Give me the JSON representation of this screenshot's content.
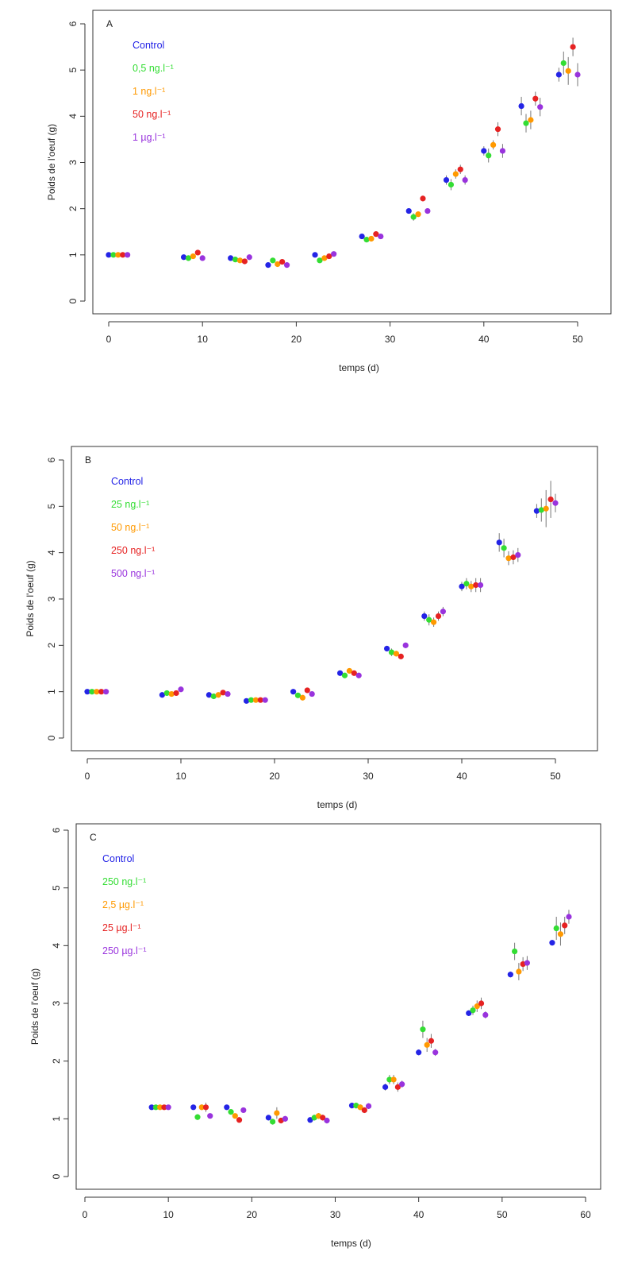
{
  "chart_data": [
    {
      "type": "scatter",
      "panel_label": "A",
      "xlabel": "temps (d)",
      "ylabel": "Poids de l'oeuf (g)",
      "xlim": [
        0,
        50
      ],
      "ylim": [
        0,
        6
      ],
      "x_ticks": [
        "0",
        "10",
        "20",
        "30",
        "40",
        "50"
      ],
      "y_ticks": [
        "0",
        "1",
        "2",
        "3",
        "4",
        "5",
        "6"
      ],
      "legend_position": "top-left",
      "series": [
        {
          "name": "Control",
          "color": "#2424e6",
          "x": [
            0,
            8,
            13,
            17,
            22,
            27,
            32,
            36,
            40,
            44,
            48
          ],
          "y": [
            1.0,
            0.95,
            0.93,
            0.78,
            1.0,
            1.4,
            1.95,
            2.62,
            3.25,
            4.22,
            4.9
          ],
          "err": [
            0,
            0.02,
            0.02,
            0.03,
            0.04,
            0.05,
            0.06,
            0.1,
            0.1,
            0.2,
            0.15
          ]
        },
        {
          "name": "0,5 ng.l⁻¹",
          "color": "#33dd33",
          "x": [
            0.5,
            8.5,
            13.5,
            17.5,
            22.5,
            27.5,
            32.5,
            36.5,
            40.5,
            44.5,
            48.5
          ],
          "y": [
            1.0,
            0.93,
            0.9,
            0.88,
            0.88,
            1.33,
            1.82,
            2.52,
            3.15,
            3.85,
            5.15
          ],
          "err": [
            0,
            0.02,
            0.02,
            0.03,
            0.04,
            0.05,
            0.08,
            0.12,
            0.15,
            0.2,
            0.25
          ]
        },
        {
          "name": "1 ng.l⁻¹",
          "color": "#ff9900",
          "x": [
            1,
            9,
            14,
            18,
            23,
            28,
            33,
            37,
            41,
            45,
            49
          ],
          "y": [
            1.0,
            0.97,
            0.88,
            0.8,
            0.93,
            1.35,
            1.88,
            2.75,
            3.38,
            3.92,
            4.98
          ],
          "err": [
            0,
            0.02,
            0.02,
            0.03,
            0.04,
            0.05,
            0.06,
            0.1,
            0.1,
            0.2,
            0.3
          ]
        },
        {
          "name": "50 ng.l⁻¹",
          "color": "#e62222",
          "x": [
            1.5,
            9.5,
            14.5,
            18.5,
            23.5,
            28.5,
            33.5,
            37.5,
            41.5,
            45.5,
            49.5
          ],
          "y": [
            1.0,
            1.05,
            0.86,
            0.85,
            0.97,
            1.45,
            2.22,
            2.85,
            3.72,
            4.38,
            5.5
          ],
          "err": [
            0,
            0.03,
            0.02,
            0.03,
            0.04,
            0.05,
            0.06,
            0.1,
            0.15,
            0.15,
            0.2
          ]
        },
        {
          "name": "1 µg.l⁻¹",
          "color": "#9933dd",
          "x": [
            2,
            10,
            15,
            19,
            24,
            29,
            34,
            38,
            42,
            46,
            50
          ],
          "y": [
            1.0,
            0.93,
            0.95,
            0.78,
            1.02,
            1.4,
            1.95,
            2.62,
            3.25,
            4.2,
            4.9
          ],
          "err": [
            0,
            0.02,
            0.02,
            0.03,
            0.04,
            0.05,
            0.06,
            0.1,
            0.15,
            0.2,
            0.25
          ]
        }
      ]
    },
    {
      "type": "scatter",
      "panel_label": "B",
      "xlabel": "temps (d)",
      "ylabel": "Poids de l'oeuf (g)",
      "xlim": [
        0,
        50
      ],
      "ylim": [
        0,
        6
      ],
      "x_ticks": [
        "0",
        "10",
        "20",
        "30",
        "40",
        "50"
      ],
      "y_ticks": [
        "0",
        "1",
        "2",
        "3",
        "4",
        "5",
        "6"
      ],
      "legend_position": "top-left",
      "series": [
        {
          "name": "Control",
          "color": "#2424e6",
          "x": [
            0,
            8,
            13,
            17,
            22,
            27,
            32,
            36,
            40,
            44,
            48
          ],
          "y": [
            1.0,
            0.93,
            0.93,
            0.8,
            1.0,
            1.4,
            1.93,
            2.63,
            3.27,
            4.22,
            4.9
          ],
          "err": [
            0,
            0.02,
            0.02,
            0.03,
            0.04,
            0.05,
            0.06,
            0.1,
            0.1,
            0.2,
            0.15
          ]
        },
        {
          "name": "25 ng.l⁻¹",
          "color": "#33dd33",
          "x": [
            0.5,
            8.5,
            13.5,
            17.5,
            22.5,
            27.5,
            32.5,
            36.5,
            40.5,
            44.5,
            48.5
          ],
          "y": [
            1.0,
            0.97,
            0.9,
            0.82,
            0.92,
            1.35,
            1.85,
            2.55,
            3.33,
            4.1,
            4.92
          ],
          "err": [
            0,
            0.02,
            0.02,
            0.03,
            0.04,
            0.05,
            0.08,
            0.12,
            0.12,
            0.2,
            0.25
          ]
        },
        {
          "name": "50 ng.l⁻¹",
          "color": "#ff9900",
          "x": [
            1,
            9,
            14,
            18,
            23,
            28,
            33,
            37,
            41,
            45,
            49
          ],
          "y": [
            1.0,
            0.95,
            0.93,
            0.82,
            0.87,
            1.45,
            1.82,
            2.5,
            3.27,
            3.88,
            4.95
          ],
          "err": [
            0,
            0.02,
            0.02,
            0.03,
            0.04,
            0.05,
            0.06,
            0.1,
            0.12,
            0.15,
            0.4
          ]
        },
        {
          "name": "250 ng.l⁻¹",
          "color": "#e62222",
          "x": [
            1.5,
            9.5,
            14.5,
            18.5,
            23.5,
            28.5,
            33.5,
            37.5,
            41.5,
            45.5,
            49.5
          ],
          "y": [
            1.0,
            0.97,
            0.98,
            0.82,
            1.03,
            1.4,
            1.76,
            2.63,
            3.3,
            3.9,
            5.15
          ],
          "err": [
            0,
            0.03,
            0.02,
            0.03,
            0.04,
            0.05,
            0.06,
            0.1,
            0.15,
            0.15,
            0.4
          ]
        },
        {
          "name": "500 ng.l⁻¹",
          "color": "#9933dd",
          "x": [
            2,
            10,
            15,
            19,
            24,
            29,
            34,
            38,
            42,
            46,
            50
          ],
          "y": [
            1.0,
            1.05,
            0.95,
            0.82,
            0.95,
            1.35,
            2.0,
            2.73,
            3.3,
            3.95,
            5.07
          ],
          "err": [
            0,
            0.02,
            0.02,
            0.03,
            0.04,
            0.05,
            0.06,
            0.1,
            0.15,
            0.15,
            0.2
          ]
        }
      ]
    },
    {
      "type": "scatter",
      "panel_label": "C",
      "xlabel": "temps (d)",
      "ylabel": "Poids de l'oeuf (g)",
      "xlim": [
        0,
        60
      ],
      "ylim": [
        0,
        6
      ],
      "x_ticks": [
        "0",
        "10",
        "20",
        "30",
        "40",
        "50",
        "60"
      ],
      "y_ticks": [
        "0",
        "1",
        "2",
        "3",
        "4",
        "5",
        "6"
      ],
      "legend_position": "top-left",
      "series": [
        {
          "name": "Control",
          "color": "#2424e6",
          "x": [
            8,
            13,
            17,
            22,
            27,
            32,
            36,
            40,
            46,
            51,
            56
          ],
          "y": [
            1.2,
            1.2,
            1.2,
            1.02,
            0.98,
            1.23,
            1.55,
            2.15,
            2.83,
            3.5,
            4.05
          ],
          "err": [
            0,
            0.02,
            0.02,
            0.03,
            0.04,
            0.05,
            0.06,
            0.05,
            0.05,
            0.05,
            0.05
          ]
        },
        {
          "name": "250 ng.l⁻¹",
          "color": "#33dd33",
          "x": [
            8.5,
            13.5,
            17.5,
            22.5,
            27.5,
            32.5,
            36.5,
            40.5,
            46.5,
            51.5,
            56.5
          ],
          "y": [
            1.2,
            1.03,
            1.12,
            0.95,
            1.02,
            1.23,
            1.68,
            2.55,
            2.88,
            3.9,
            4.3
          ],
          "err": [
            0,
            0.05,
            0.03,
            0.05,
            0.05,
            0.05,
            0.08,
            0.15,
            0.08,
            0.15,
            0.2
          ]
        },
        {
          "name": "2,5 µg.l⁻¹",
          "color": "#ff9900",
          "x": [
            9,
            14,
            18,
            23,
            28,
            33,
            37,
            41,
            47,
            52,
            57
          ],
          "y": [
            1.2,
            1.2,
            1.05,
            1.1,
            1.05,
            1.2,
            1.68,
            2.28,
            2.95,
            3.55,
            4.2
          ],
          "err": [
            0,
            0.05,
            0.03,
            0.1,
            0.05,
            0.05,
            0.08,
            0.12,
            0.1,
            0.15,
            0.2
          ]
        },
        {
          "name": "25 µg.l⁻¹",
          "color": "#e62222",
          "x": [
            9.5,
            14.5,
            18.5,
            23.5,
            28.5,
            33.5,
            37.5,
            41.5,
            47.5,
            52.5,
            57.5
          ],
          "y": [
            1.2,
            1.2,
            0.98,
            0.97,
            1.02,
            1.15,
            1.55,
            2.35,
            3.0,
            3.68,
            4.35
          ],
          "err": [
            0,
            0.08,
            0.03,
            0.05,
            0.05,
            0.05,
            0.08,
            0.12,
            0.1,
            0.12,
            0.15
          ]
        },
        {
          "name": "250 µg.l⁻¹",
          "color": "#9933dd",
          "x": [
            10,
            15,
            19,
            24,
            29,
            34,
            38,
            42,
            48,
            53,
            58
          ],
          "y": [
            1.2,
            1.05,
            1.15,
            1.0,
            0.97,
            1.22,
            1.6,
            2.15,
            2.8,
            3.7,
            4.5
          ],
          "err": [
            0,
            0.03,
            0.03,
            0.05,
            0.05,
            0.05,
            0.06,
            0.06,
            0.06,
            0.12,
            0.12
          ]
        }
      ]
    }
  ]
}
